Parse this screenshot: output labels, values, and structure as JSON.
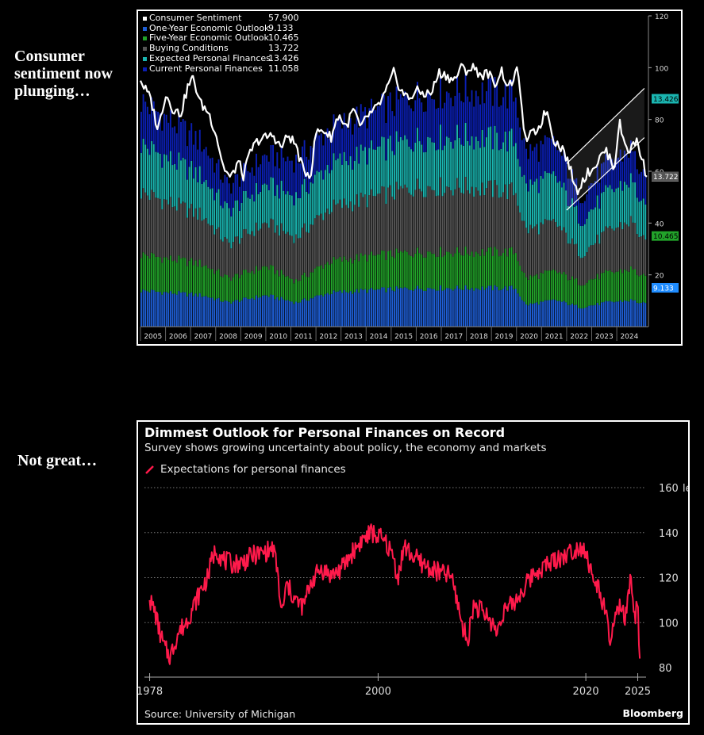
{
  "side_labels": [
    "Consumer sentiment now plunging…",
    "Not great…"
  ],
  "chart_data": [
    {
      "type": "area",
      "title": "",
      "xlabel": "",
      "ylabel": "",
      "ylim": [
        0,
        120
      ],
      "y_ticks": [
        20,
        40,
        60,
        80,
        100,
        120
      ],
      "x_ticks": [
        "2005",
        "2006",
        "2007",
        "2008",
        "2009",
        "2010",
        "2011",
        "2012",
        "2013",
        "2014",
        "2015",
        "2016",
        "2017",
        "2018",
        "2019",
        "2020",
        "2021",
        "2022",
        "2023",
        "2024"
      ],
      "x_range": [
        2005,
        2025.2
      ],
      "stacked": true,
      "legend_placement": "top-left",
      "series": [
        {
          "name": "One-Year Economic Outlook",
          "last": "9.133",
          "color": "#1f5fd6",
          "points": [
            [
              2005,
              15
            ],
            [
              2007.5,
              13
            ],
            [
              2008.5,
              10
            ],
            [
              2010,
              13
            ],
            [
              2011.2,
              10
            ],
            [
              2012.5,
              14
            ],
            [
              2014,
              15
            ],
            [
              2016,
              16
            ],
            [
              2018,
              16
            ],
            [
              2019.9,
              16
            ],
            [
              2020.3,
              9
            ],
            [
              2021.5,
              11
            ],
            [
              2022.5,
              8
            ],
            [
              2023.5,
              10
            ],
            [
              2024.5,
              11
            ],
            [
              2025.1,
              9.133
            ]
          ]
        },
        {
          "name": "Five-Year Economic Outlook",
          "last": "10.465",
          "color": "#22a32a",
          "points": [
            [
              2005,
              15
            ],
            [
              2007.5,
              13
            ],
            [
              2008.5,
              10
            ],
            [
              2010,
              12
            ],
            [
              2011.2,
              9
            ],
            [
              2012.5,
              13
            ],
            [
              2014,
              14
            ],
            [
              2016,
              15
            ],
            [
              2018,
              15
            ],
            [
              2019.9,
              15
            ],
            [
              2020.3,
              11
            ],
            [
              2021.5,
              12
            ],
            [
              2022.5,
              10
            ],
            [
              2023.5,
              12
            ],
            [
              2024.5,
              13
            ],
            [
              2025.1,
              10.465
            ]
          ]
        },
        {
          "name": "Buying Conditions",
          "last": "13.722",
          "color": "#555555",
          "points": [
            [
              2005,
              26
            ],
            [
              2007.5,
              20
            ],
            [
              2008.5,
              14
            ],
            [
              2010,
              18
            ],
            [
              2011.2,
              18
            ],
            [
              2012.5,
              22
            ],
            [
              2014,
              24
            ],
            [
              2016,
              27
            ],
            [
              2018,
              27
            ],
            [
              2019.9,
              25
            ],
            [
              2020.3,
              20
            ],
            [
              2021.5,
              20
            ],
            [
              2022.5,
              12
            ],
            [
              2023.5,
              17
            ],
            [
              2024.5,
              20
            ],
            [
              2025.1,
              13.722
            ]
          ]
        },
        {
          "name": "Expected Personal Finances",
          "last": "13.426",
          "color": "#1ab5b0",
          "points": [
            [
              2005,
              20
            ],
            [
              2007.5,
              16
            ],
            [
              2008.5,
              14
            ],
            [
              2010,
              16
            ],
            [
              2011.2,
              17
            ],
            [
              2012.5,
              18
            ],
            [
              2014,
              19
            ],
            [
              2016,
              20
            ],
            [
              2018,
              21
            ],
            [
              2019.9,
              21
            ],
            [
              2020.3,
              18
            ],
            [
              2021.5,
              19
            ],
            [
              2022.5,
              14
            ],
            [
              2023.5,
              16
            ],
            [
              2024.5,
              17
            ],
            [
              2025.1,
              13.426
            ]
          ]
        },
        {
          "name": "Current Personal Finances",
          "last": "11.058",
          "color": "#0b1fb3",
          "points": [
            [
              2005,
              18
            ],
            [
              2007.5,
              14
            ],
            [
              2008.5,
              10
            ],
            [
              2010,
              12
            ],
            [
              2011.2,
              15
            ],
            [
              2012.5,
              15
            ],
            [
              2014,
              16
            ],
            [
              2016,
              18
            ],
            [
              2018,
              19
            ],
            [
              2019.9,
              19
            ],
            [
              2020.3,
              14
            ],
            [
              2021.5,
              14
            ],
            [
              2022.5,
              10
            ],
            [
              2023.5,
              12
            ],
            [
              2024.5,
              13
            ],
            [
              2025.1,
              11.058
            ]
          ]
        }
      ],
      "line_series": {
        "name": "Consumer Sentiment",
        "last": "57.900",
        "color": "#ffffff",
        "points": [
          [
            2005,
            95
          ],
          [
            2005.4,
            88
          ],
          [
            2005.7,
            76
          ],
          [
            2006,
            90
          ],
          [
            2006.3,
            84
          ],
          [
            2006.6,
            82
          ],
          [
            2006.9,
            93
          ],
          [
            2007.1,
            96
          ],
          [
            2007.4,
            86
          ],
          [
            2007.7,
            83
          ],
          [
            2008.0,
            75
          ],
          [
            2008.3,
            62
          ],
          [
            2008.6,
            57
          ],
          [
            2008.9,
            64
          ],
          [
            2009.1,
            58
          ],
          [
            2009.4,
            68
          ],
          [
            2009.7,
            72
          ],
          [
            2010.0,
            73
          ],
          [
            2010.3,
            74
          ],
          [
            2010.6,
            69
          ],
          [
            2010.9,
            74
          ],
          [
            2011.2,
            70
          ],
          [
            2011.5,
            60
          ],
          [
            2011.8,
            59
          ],
          [
            2012.0,
            75
          ],
          [
            2012.3,
            76
          ],
          [
            2012.6,
            73
          ],
          [
            2012.9,
            82
          ],
          [
            2013.2,
            77
          ],
          [
            2013.5,
            84
          ],
          [
            2013.8,
            76
          ],
          [
            2014.0,
            81
          ],
          [
            2014.3,
            83
          ],
          [
            2014.6,
            87
          ],
          [
            2014.9,
            93
          ],
          [
            2015.1,
            98
          ],
          [
            2015.4,
            91
          ],
          [
            2015.7,
            88
          ],
          [
            2016.0,
            91
          ],
          [
            2016.3,
            90
          ],
          [
            2016.6,
            90
          ],
          [
            2016.9,
            98
          ],
          [
            2017.2,
            97
          ],
          [
            2017.5,
            95
          ],
          [
            2017.8,
            100
          ],
          [
            2018.0,
            99
          ],
          [
            2018.3,
            100
          ],
          [
            2018.6,
            97
          ],
          [
            2018.9,
            98
          ],
          [
            2019.1,
            93
          ],
          [
            2019.4,
            99
          ],
          [
            2019.7,
            92
          ],
          [
            2020.0,
            99
          ],
          [
            2020.2,
            89
          ],
          [
            2020.3,
            72
          ],
          [
            2020.6,
            74
          ],
          [
            2020.9,
            77
          ],
          [
            2021.2,
            84
          ],
          [
            2021.5,
            72
          ],
          [
            2021.7,
            70
          ],
          [
            2021.9,
            68
          ],
          [
            2022.2,
            59
          ],
          [
            2022.4,
            52
          ],
          [
            2022.6,
            56
          ],
          [
            2022.9,
            60
          ],
          [
            2023.2,
            63
          ],
          [
            2023.5,
            68
          ],
          [
            2023.7,
            66
          ],
          [
            2023.9,
            61
          ],
          [
            2024.1,
            79
          ],
          [
            2024.3,
            71
          ],
          [
            2024.5,
            68
          ],
          [
            2024.8,
            72
          ],
          [
            2025.0,
            65
          ],
          [
            2025.2,
            57.9
          ]
        ]
      },
      "channel": {
        "lower": [
          [
            2022.0,
            45
          ],
          [
            2025.1,
            73
          ]
        ],
        "upper": [
          [
            2022.0,
            63
          ],
          [
            2025.1,
            92
          ]
        ]
      }
    },
    {
      "type": "line",
      "title": "Dimmest Outlook for Personal Finances on Record",
      "subtitle": "Survey shows growing uncertainty about policy, the economy and markets",
      "legend": "Expectations for personal finances",
      "xlabel": "",
      "ylabel": "",
      "y_unit": "level",
      "ylim": [
        80,
        160
      ],
      "y_ticks": [
        80,
        100,
        120,
        140,
        160
      ],
      "x_ticks": [
        1978,
        2000,
        2020,
        2025
      ],
      "x_range": [
        1977.5,
        2025.8
      ],
      "grid": true,
      "source": "Source: University of Michigan",
      "brand": "Bloomberg",
      "series": [
        {
          "name": "Expectations for personal finances",
          "color": "#ff1a4b",
          "points": [
            [
              1978,
              110
            ],
            [
              1978.5,
              105
            ],
            [
              1979,
              95
            ],
            [
              1979.5,
              88
            ],
            [
              1980,
              85
            ],
            [
              1980.7,
              95
            ],
            [
              1981.5,
              100
            ],
            [
              1982.3,
              108
            ],
            [
              1983,
              115
            ],
            [
              1983.6,
              120
            ],
            [
              1984,
              128
            ],
            [
              1984.4,
              133
            ],
            [
              1985,
              128
            ],
            [
              1986,
              126
            ],
            [
              1987,
              127
            ],
            [
              1988,
              130
            ],
            [
              1989,
              131
            ],
            [
              1989.9,
              133
            ],
            [
              1990.3,
              123
            ],
            [
              1990.7,
              103
            ],
            [
              1991.2,
              117
            ],
            [
              1992,
              110
            ],
            [
              1992.8,
              107
            ],
            [
              1993.5,
              118
            ],
            [
              1994.5,
              124
            ],
            [
              1995.5,
              121
            ],
            [
              1996.5,
              124
            ],
            [
              1997.5,
              131
            ],
            [
              1998.5,
              137
            ],
            [
              1999.4,
              140
            ],
            [
              2000.1,
              138
            ],
            [
              2000.8,
              135
            ],
            [
              2001.4,
              130
            ],
            [
              2001.9,
              120
            ],
            [
              2002.5,
              134
            ],
            [
              2003.2,
              130
            ],
            [
              2004,
              127
            ],
            [
              2005,
              124
            ],
            [
              2006,
              122
            ],
            [
              2007,
              121
            ],
            [
              2007.6,
              110
            ],
            [
              2008.2,
              97
            ],
            [
              2008.6,
              92
            ],
            [
              2009.2,
              108
            ],
            [
              2010,
              105
            ],
            [
              2011,
              100
            ],
            [
              2011.4,
              95
            ],
            [
              2012,
              105
            ],
            [
              2013,
              108
            ],
            [
              2014,
              115
            ],
            [
              2015,
              122
            ],
            [
              2016,
              125
            ],
            [
              2017,
              128
            ],
            [
              2018,
              130
            ],
            [
              2019,
              133
            ],
            [
              2019.8,
              134
            ],
            [
              2020.2,
              128
            ],
            [
              2020.7,
              118
            ],
            [
              2021.3,
              115
            ],
            [
              2021.9,
              104
            ],
            [
              2022.3,
              92
            ],
            [
              2022.8,
              100
            ],
            [
              2023.3,
              108
            ],
            [
              2023.8,
              101
            ],
            [
              2024.3,
              118
            ],
            [
              2024.7,
              103
            ],
            [
              2025.0,
              107
            ],
            [
              2025.2,
              84
            ]
          ]
        }
      ]
    }
  ]
}
